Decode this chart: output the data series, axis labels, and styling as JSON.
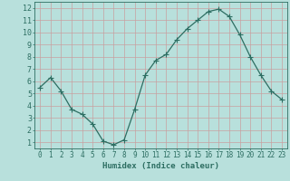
{
  "x": [
    0,
    1,
    2,
    3,
    4,
    5,
    6,
    7,
    8,
    9,
    10,
    11,
    12,
    13,
    14,
    15,
    16,
    17,
    18,
    19,
    20,
    21,
    22,
    23
  ],
  "y": [
    5.5,
    6.3,
    5.2,
    3.7,
    3.3,
    2.5,
    1.1,
    0.8,
    1.2,
    3.7,
    6.5,
    7.7,
    8.2,
    9.4,
    10.3,
    11.0,
    11.7,
    11.9,
    11.3,
    9.8,
    8.0,
    6.5,
    5.2,
    4.5
  ],
  "xlabel": "Humidex (Indice chaleur)",
  "ylim": [
    0.5,
    12.5
  ],
  "xlim": [
    -0.5,
    23.5
  ],
  "yticks": [
    1,
    2,
    3,
    4,
    5,
    6,
    7,
    8,
    9,
    10,
    11,
    12
  ],
  "xticks": [
    0,
    1,
    2,
    3,
    4,
    5,
    6,
    7,
    8,
    9,
    10,
    11,
    12,
    13,
    14,
    15,
    16,
    17,
    18,
    19,
    20,
    21,
    22,
    23
  ],
  "line_color": "#2d6e62",
  "marker_color": "#2d6e62",
  "bg_color": "#b8e0dc",
  "grid_color": "#c8a0a0",
  "xlabel_color": "#2d6e62",
  "tick_color": "#2d6e62",
  "axis_color": "#2d6e62",
  "tick_fontsize": 5.5,
  "xlabel_fontsize": 6.5,
  "marker_size": 2.0,
  "line_width": 0.9
}
